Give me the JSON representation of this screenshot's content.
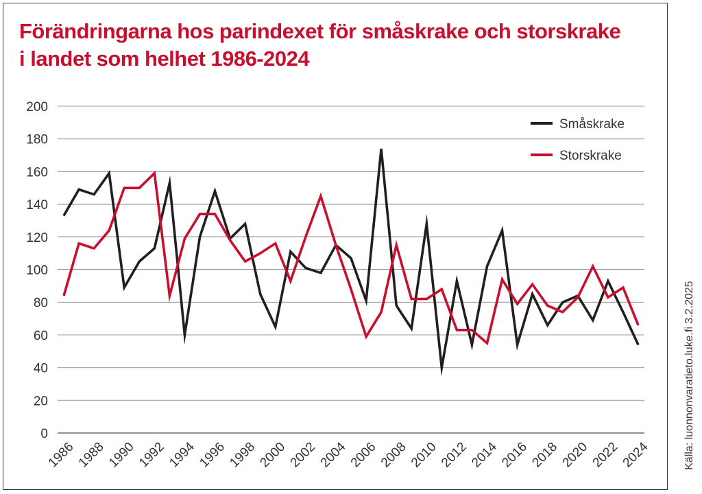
{
  "title": "Förändringarna hos parindexet för småskrake och storskrake i landet som helhet 1986-2024",
  "source": "Källa: luonnonvaratieto.luke.fi 3.2.2025",
  "chart_data": {
    "type": "line",
    "title": "Förändringarna hos parindexet för småskrake och storskrake i landet som helhet 1986-2024",
    "xlabel": "",
    "ylabel": "",
    "ylim": [
      0,
      200
    ],
    "yticks": [
      0,
      20,
      40,
      60,
      80,
      100,
      120,
      140,
      160,
      180,
      200
    ],
    "xlim": [
      1986,
      2024
    ],
    "xticks": [
      1986,
      1988,
      1990,
      1992,
      1994,
      1996,
      1998,
      2000,
      2002,
      2004,
      2006,
      2008,
      2010,
      2012,
      2014,
      2016,
      2018,
      2020,
      2022,
      2024
    ],
    "grid": "horizontal",
    "legend_position": "top-right",
    "x": [
      1986,
      1987,
      1988,
      1989,
      1990,
      1991,
      1992,
      1993,
      1994,
      1995,
      1996,
      1997,
      1998,
      1999,
      2000,
      2001,
      2002,
      2003,
      2004,
      2005,
      2006,
      2007,
      2008,
      2009,
      2010,
      2011,
      2012,
      2013,
      2014,
      2015,
      2016,
      2017,
      2018,
      2019,
      2020,
      2021,
      2022,
      2023,
      2024
    ],
    "series": [
      {
        "name": "Småskrake",
        "color": "#231f20",
        "values": [
          133,
          149,
          146,
          159,
          89,
          105,
          113,
          153,
          60,
          120,
          148,
          119,
          128,
          85,
          65,
          111,
          101,
          98,
          115,
          107,
          81,
          174,
          78,
          64,
          128,
          40,
          93,
          54,
          102,
          124,
          54,
          85,
          66,
          80,
          84,
          69,
          93,
          74,
          54
        ]
      },
      {
        "name": "Storskrake",
        "color": "#c8102e",
        "values": [
          84,
          116,
          113,
          124,
          150,
          150,
          159,
          84,
          119,
          134,
          134,
          118,
          105,
          110,
          116,
          93,
          120,
          145,
          115,
          88,
          59,
          74,
          115,
          82,
          82,
          88,
          63,
          63,
          55,
          94,
          79,
          91,
          78,
          74,
          83,
          102,
          83,
          89,
          66
        ]
      }
    ]
  }
}
